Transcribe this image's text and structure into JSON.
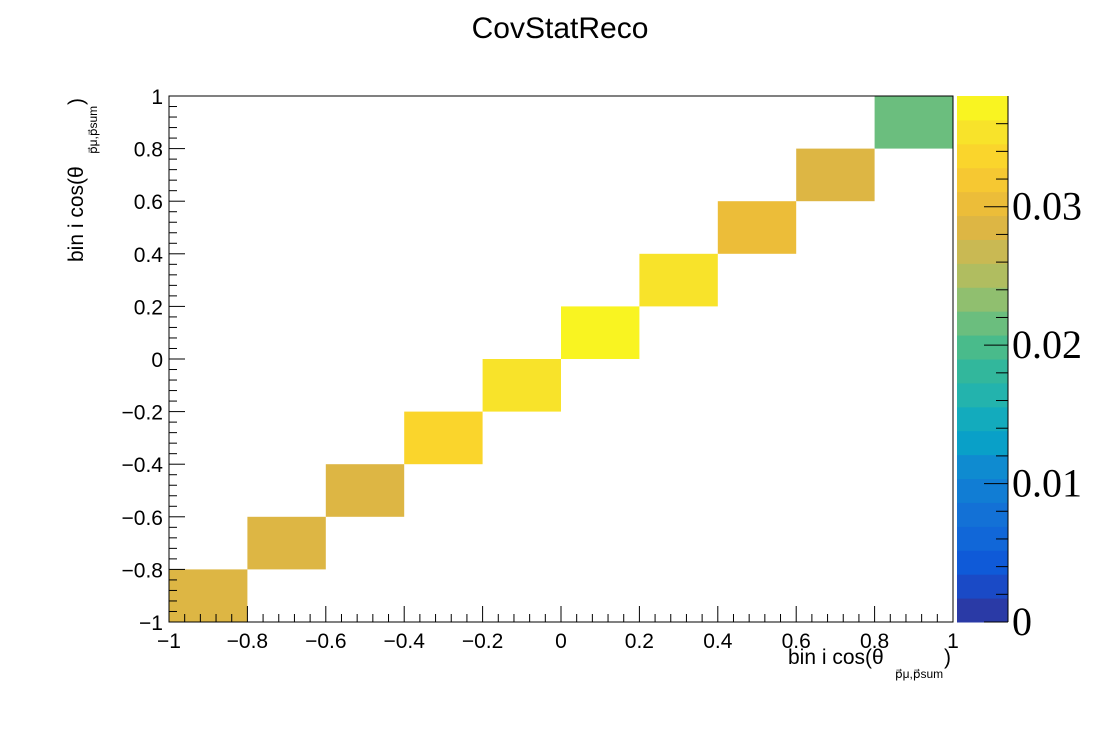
{
  "chart_data": {
    "type": "heatmap",
    "title": "CovStatReco",
    "xlabel": "bin i cos(θ",
    "ylabel": "bin i cos(θ",
    "label_subscript": "p⃗μ,p⃗sum",
    "xlim": [
      -1,
      1
    ],
    "ylim": [
      -1,
      1
    ],
    "zlim": [
      0,
      0.038
    ],
    "x_edges": [
      -1,
      -0.8,
      -0.6,
      -0.4,
      -0.2,
      0,
      0.2,
      0.4,
      0.6,
      0.8,
      1
    ],
    "y_edges": [
      -1,
      -0.8,
      -0.6,
      -0.4,
      -0.2,
      0,
      0.2,
      0.4,
      0.6,
      0.8,
      1
    ],
    "cells": [
      {
        "xbin": 0,
        "ybin": 0,
        "value": 0.029
      },
      {
        "xbin": 1,
        "ybin": 1,
        "value": 0.029
      },
      {
        "xbin": 2,
        "ybin": 2,
        "value": 0.029
      },
      {
        "xbin": 3,
        "ybin": 3,
        "value": 0.033
      },
      {
        "xbin": 4,
        "ybin": 4,
        "value": 0.036
      },
      {
        "xbin": 5,
        "ybin": 5,
        "value": 0.038
      },
      {
        "xbin": 6,
        "ybin": 6,
        "value": 0.036
      },
      {
        "xbin": 7,
        "ybin": 7,
        "value": 0.031
      },
      {
        "xbin": 8,
        "ybin": 8,
        "value": 0.029
      },
      {
        "xbin": 9,
        "ybin": 9,
        "value": 0.022
      }
    ],
    "x_tick_labels": [
      "−1",
      "−0.8",
      "−0.6",
      "−0.4",
      "−0.2",
      "0",
      "0.2",
      "0.4",
      "0.6",
      "0.8",
      "1"
    ],
    "y_tick_labels": [
      "−1",
      "−0.8",
      "−0.6",
      "−0.4",
      "−0.2",
      "0",
      "0.2",
      "0.4",
      "0.6",
      "0.8",
      "1"
    ],
    "z_tick_labels": [
      "0",
      "0.01",
      "0.02",
      "0.03"
    ],
    "z_tick_values": [
      0,
      0.01,
      0.02,
      0.03
    ],
    "palette": [
      "#2a3aa6",
      "#1a4ac6",
      "#0f5ad8",
      "#1167d8",
      "#1371d6",
      "#117dd4",
      "#0f8bd0",
      "#09a0c8",
      "#13abbd",
      "#23b3ad",
      "#32b79c",
      "#49bb8b",
      "#6bbe7e",
      "#90bf6f",
      "#b0bd60",
      "#c9b953",
      "#ddb644",
      "#ecbd39",
      "#f6c832",
      "#fad52c",
      "#f8e32a",
      "#f9f421"
    ]
  }
}
